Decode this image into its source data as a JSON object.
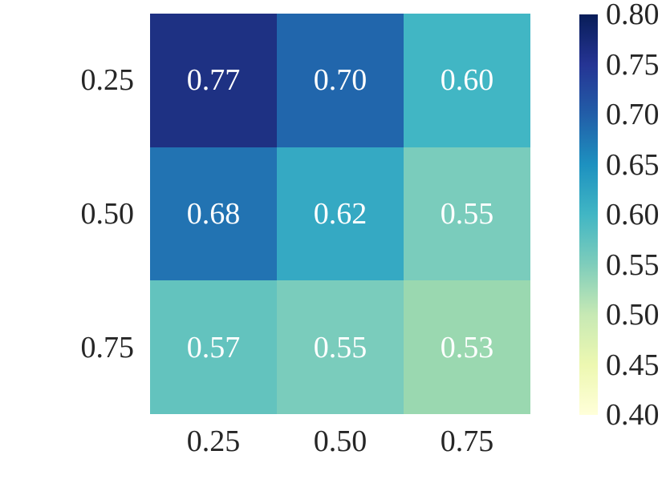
{
  "figure": {
    "background": "#ffffff",
    "tick_text_color": "#262626",
    "annotation_text_color": "#ffffff"
  },
  "chart_data": {
    "type": "heatmap",
    "title": "",
    "xlabel": "",
    "ylabel": "",
    "grid": false,
    "legend": false,
    "colormap": "YlGnBu",
    "x_tick_labels": [
      "0.25",
      "0.50",
      "0.75"
    ],
    "y_tick_labels": [
      "0.25",
      "0.50",
      "0.75"
    ],
    "values": [
      [
        0.77,
        0.7,
        0.6
      ],
      [
        0.68,
        0.62,
        0.55
      ],
      [
        0.57,
        0.55,
        0.53
      ]
    ],
    "cell_colors": [
      [
        "#1e3183",
        "#2166ac",
        "#41b6c4"
      ],
      [
        "#2273b2",
        "#35a9c3",
        "#7accbc"
      ],
      [
        "#63c3be",
        "#7accbc",
        "#9ad8b0"
      ]
    ],
    "colorbar": {
      "vmin": 0.4,
      "vmax": 0.8,
      "tick_labels": [
        "0.80",
        "0.75",
        "0.70",
        "0.65",
        "0.60",
        "0.55",
        "0.50",
        "0.45",
        "0.40"
      ],
      "gradient_stops_top_to_bottom": [
        "#081d58",
        "#253494",
        "#225ea8",
        "#1d91c0",
        "#41b6c4",
        "#7fcdbb",
        "#c7e9b4",
        "#edf8b1",
        "#ffffd9"
      ]
    }
  }
}
